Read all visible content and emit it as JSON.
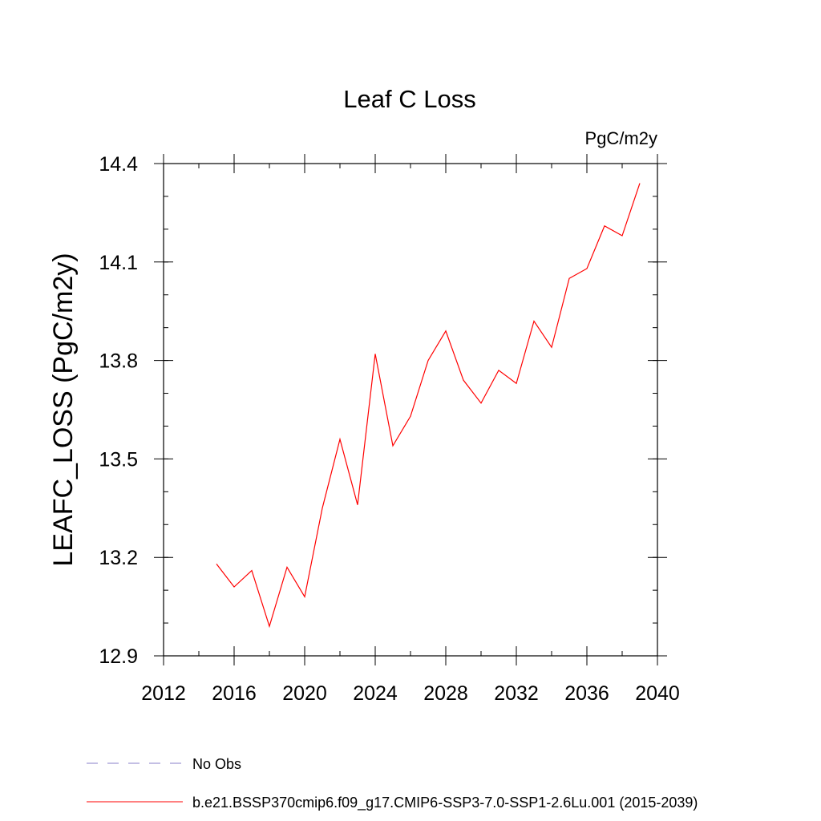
{
  "chart_data": {
    "type": "line",
    "title": "Leaf C Loss",
    "units": "PgC/m2y",
    "xlabel": "",
    "ylabel": "LEAFC_LOSS  (PgC/m2y)",
    "xlim": [
      2012,
      2040
    ],
    "ylim": [
      12.9,
      14.4
    ],
    "x_ticks": [
      2012,
      2016,
      2020,
      2024,
      2028,
      2032,
      2036,
      2040
    ],
    "x_minor_step": 2,
    "y_ticks": [
      12.9,
      13.2,
      13.5,
      13.8,
      14.1,
      14.4
    ],
    "y_minor_step": 0.1,
    "grid": false,
    "legend_placement": "bottom",
    "series": [
      {
        "name": "b.e21.BSSP370cmip6.f09_g17.CMIP6-SSP3-7.0-SSP1-2.6Lu.001 (2015-2039)",
        "color": "#ff0000",
        "style": "solid",
        "x": [
          2015,
          2016,
          2017,
          2018,
          2019,
          2020,
          2021,
          2022,
          2023,
          2024,
          2025,
          2026,
          2027,
          2028,
          2029,
          2030,
          2031,
          2032,
          2033,
          2034,
          2035,
          2036,
          2037,
          2038,
          2039
        ],
        "y": [
          13.18,
          13.11,
          13.16,
          12.99,
          13.17,
          13.08,
          13.35,
          13.56,
          13.36,
          13.82,
          13.54,
          13.63,
          13.8,
          13.89,
          13.74,
          13.67,
          13.77,
          13.73,
          13.92,
          13.84,
          14.05,
          14.08,
          14.21,
          14.18,
          14.34
        ]
      }
    ],
    "legend": [
      {
        "label": "No Obs",
        "color": "#8a7fc8",
        "style": "dashed"
      },
      {
        "label": "b.e21.BSSP370cmip6.f09_g17.CMIP6-SSP3-7.0-SSP1-2.6Lu.001 (2015-2039)",
        "color": "#ff0000",
        "style": "solid"
      }
    ]
  }
}
